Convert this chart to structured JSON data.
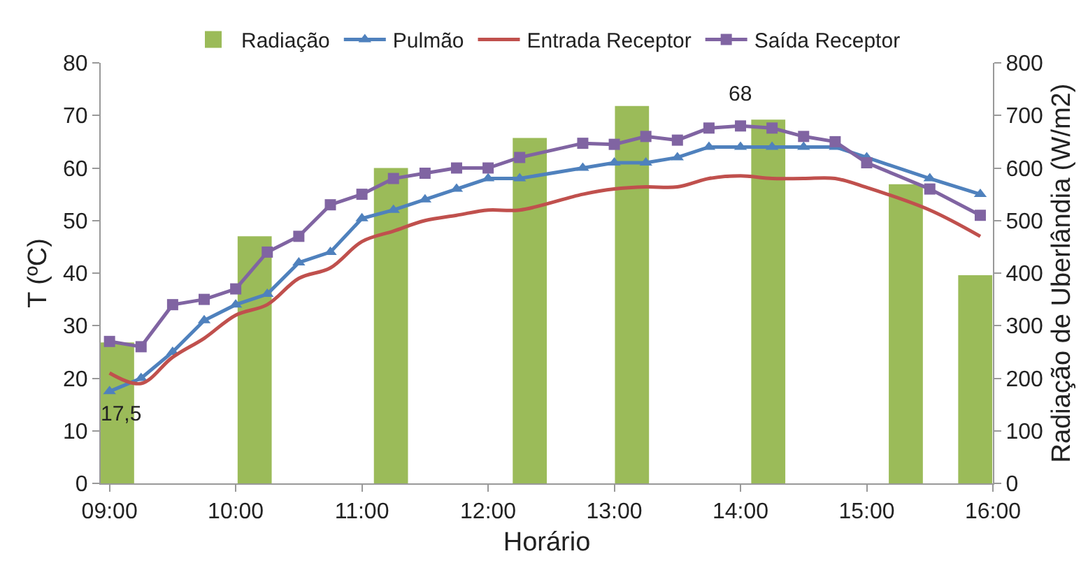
{
  "chart_data": {
    "type": "line",
    "xlabel": "Horário",
    "ylabel": "T (ºC)",
    "y2label": "Radiação de Uberlândia (W/m2)",
    "x": [
      9.0,
      9.25,
      9.5,
      9.75,
      10.0,
      10.25,
      10.5,
      10.75,
      11.0,
      11.25,
      11.5,
      11.75,
      12.0,
      12.25,
      12.75,
      13.0,
      13.25,
      13.5,
      13.75,
      14.0,
      14.25,
      14.5,
      14.75,
      15.0,
      15.5,
      15.9
    ],
    "series": [
      {
        "name": "Radiação",
        "type": "bar",
        "axis": "y2",
        "color": "#9bbb59",
        "x": [
          9.06,
          10.15,
          11.23,
          12.33,
          13.14,
          14.22,
          15.31,
          15.86
        ],
        "values": [
          268,
          470,
          600,
          657,
          718,
          692,
          569,
          396
        ]
      },
      {
        "name": "Pulmão",
        "color": "#4f81bd",
        "marker": "triangle",
        "values": [
          17.5,
          20,
          25,
          31,
          34,
          36,
          42,
          44,
          50.4,
          52,
          54,
          56,
          58,
          58,
          60,
          61,
          61,
          62,
          64,
          64,
          64,
          64,
          64,
          62,
          58,
          55
        ]
      },
      {
        "name": "Entrada Receptor",
        "color": "#c0504d",
        "marker": "none",
        "values": [
          21,
          19,
          24,
          27.6,
          32,
          34,
          39,
          41,
          46,
          48,
          50,
          51,
          52,
          52,
          55,
          56,
          56.4,
          56.4,
          58,
          58.5,
          58,
          58,
          58,
          56.3,
          52,
          47
        ]
      },
      {
        "name": "Saída Receptor",
        "color": "#8064a2",
        "marker": "square",
        "values": [
          27,
          26,
          34,
          35,
          37,
          44,
          47,
          53,
          55,
          58,
          59,
          60,
          60,
          62,
          64.7,
          64.5,
          66,
          65.3,
          67.6,
          68,
          67.6,
          66,
          65,
          61,
          56,
          51
        ]
      }
    ],
    "annotations": [
      {
        "text": "17,5",
        "x": 9,
        "y": 17.5
      },
      {
        "text": "68",
        "x": 14,
        "y": 68
      }
    ],
    "xlim": [
      8.93,
      16
    ],
    "xticks": [
      {
        "value": 9,
        "label": "09:00"
      },
      {
        "value": 10,
        "label": "10:00"
      },
      {
        "value": 11,
        "label": "11:00"
      },
      {
        "value": 12,
        "label": "12:00"
      },
      {
        "value": 13,
        "label": "13:00"
      },
      {
        "value": 14,
        "label": "14:00"
      },
      {
        "value": 15,
        "label": "15:00"
      },
      {
        "value": 16,
        "label": "16:00"
      }
    ],
    "ylim": [
      0,
      80
    ],
    "yticks": [
      0,
      10,
      20,
      30,
      40,
      50,
      60,
      70,
      80
    ],
    "y2lim": [
      0,
      800
    ],
    "y2ticks": [
      0,
      100,
      200,
      300,
      400,
      500,
      600,
      700,
      800
    ],
    "grid": false,
    "legend": "top"
  }
}
